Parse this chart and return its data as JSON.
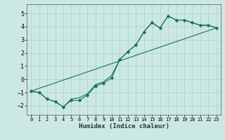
{
  "xlabel": "Humidex (Indice chaleur)",
  "ylabel": "",
  "xlim": [
    -0.5,
    23.5
  ],
  "ylim": [
    -2.7,
    5.7
  ],
  "yticks": [
    -2,
    -1,
    0,
    1,
    2,
    3,
    4,
    5
  ],
  "xticks": [
    0,
    1,
    2,
    3,
    4,
    5,
    6,
    7,
    8,
    9,
    10,
    11,
    12,
    13,
    14,
    15,
    16,
    17,
    18,
    19,
    20,
    21,
    22,
    23
  ],
  "bg_color": "#cce8e4",
  "grid_color": "#b0d4d0",
  "line_color": "#1a6e62",
  "line1_x": [
    0,
    1,
    2,
    3,
    4,
    5,
    6,
    7,
    8,
    9,
    10,
    11,
    12,
    13,
    14,
    15,
    16,
    17,
    18,
    19,
    20,
    21,
    22,
    23
  ],
  "line1_y": [
    -0.9,
    -1.0,
    -1.5,
    -1.7,
    -2.1,
    -1.6,
    -1.6,
    -1.2,
    -0.5,
    -0.3,
    0.1,
    1.5,
    2.1,
    2.6,
    3.6,
    4.3,
    3.9,
    4.8,
    4.5,
    4.5,
    4.3,
    4.1,
    4.1,
    3.9
  ],
  "line2_x": [
    0,
    23
  ],
  "line2_y": [
    -0.9,
    3.9
  ],
  "line3_x": [
    0,
    1,
    2,
    3,
    4,
    5,
    6,
    7,
    8,
    9,
    10,
    11,
    12,
    13,
    14,
    15,
    16,
    17,
    18,
    19,
    20,
    21,
    22,
    23
  ],
  "line3_y": [
    -0.9,
    -1.0,
    -1.5,
    -1.7,
    -2.1,
    -1.5,
    -1.4,
    -1.1,
    -0.4,
    -0.2,
    0.3,
    1.5,
    2.1,
    2.6,
    3.6,
    4.3,
    3.9,
    4.8,
    4.5,
    4.5,
    4.3,
    4.1,
    4.1,
    3.9
  ],
  "marker_size": 2.5,
  "line_width": 0.8,
  "tick_fontsize": 5.5,
  "xlabel_fontsize": 6.5
}
